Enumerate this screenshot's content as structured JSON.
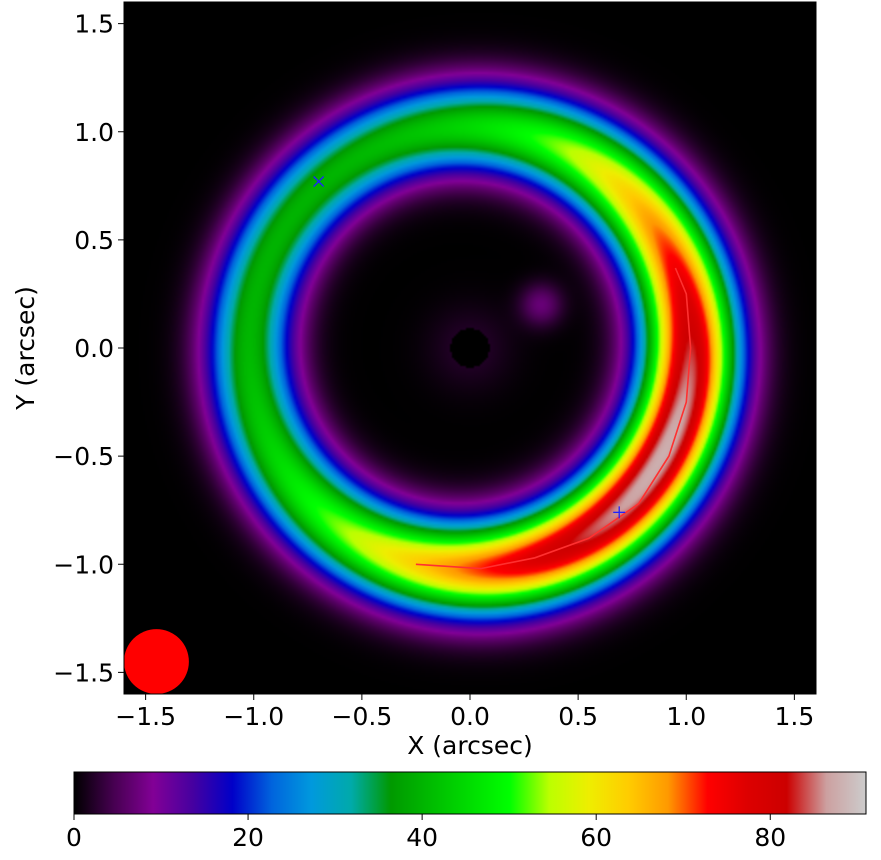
{
  "chart_data": {
    "type": "heatmap",
    "title": "",
    "xlabel": "X (arcsec)",
    "ylabel": "Y (arcsec)",
    "xlim": [
      -1.6,
      1.6
    ],
    "ylim": [
      -1.6,
      1.6
    ],
    "x_ticks": [
      -1.5,
      -1.0,
      -0.5,
      0.0,
      0.5,
      1.0,
      1.5
    ],
    "x_tick_labels": [
      "−1.5",
      "−1.0",
      "−0.5",
      "0.0",
      "0.5",
      "1.0",
      "1.5"
    ],
    "y_ticks": [
      -1.5,
      -1.0,
      -0.5,
      0.0,
      0.5,
      1.0,
      1.5
    ],
    "y_tick_labels": [
      "−1.5",
      "−1.0",
      "−0.5",
      "0.0",
      "0.5",
      "1.0",
      "1.5"
    ],
    "ring": {
      "center": [
        0.0,
        0.0
      ],
      "radius_arcsec": 1.02,
      "peak_value": 88,
      "minimum_value": 40,
      "peak_position_angle_deg": -30
    },
    "central_dark_spot": {
      "x": 0.0,
      "y": 0.0
    },
    "faint_blob": {
      "x": 0.33,
      "y": 0.2,
      "value": 7
    },
    "critical_curve": {
      "color": "#ff3030",
      "points": [
        [
          0.95,
          0.37
        ],
        [
          1.0,
          0.25
        ],
        [
          1.02,
          0.0
        ],
        [
          1.0,
          -0.25
        ],
        [
          0.92,
          -0.5
        ],
        [
          0.78,
          -0.72
        ],
        [
          0.55,
          -0.88
        ],
        [
          0.3,
          -0.97
        ],
        [
          0.05,
          -1.02
        ],
        [
          -0.25,
          -1.0
        ]
      ]
    },
    "markers": [
      {
        "symbol": "x",
        "x": -0.7,
        "y": 0.77,
        "color": "#2020ff"
      },
      {
        "symbol": "+",
        "x": 0.69,
        "y": -0.76,
        "color": "#2020ff"
      }
    ],
    "beam": {
      "x": -1.45,
      "y": -1.45,
      "diameter_arcsec": 0.3,
      "color": "#ff0000"
    },
    "colorbar": {
      "colormap": "nipy_spectral",
      "range": [
        0,
        91
      ],
      "ticks": [
        0,
        20,
        40,
        60,
        80
      ],
      "tick_labels": [
        "0",
        "20",
        "40",
        "60",
        "80"
      ]
    }
  }
}
